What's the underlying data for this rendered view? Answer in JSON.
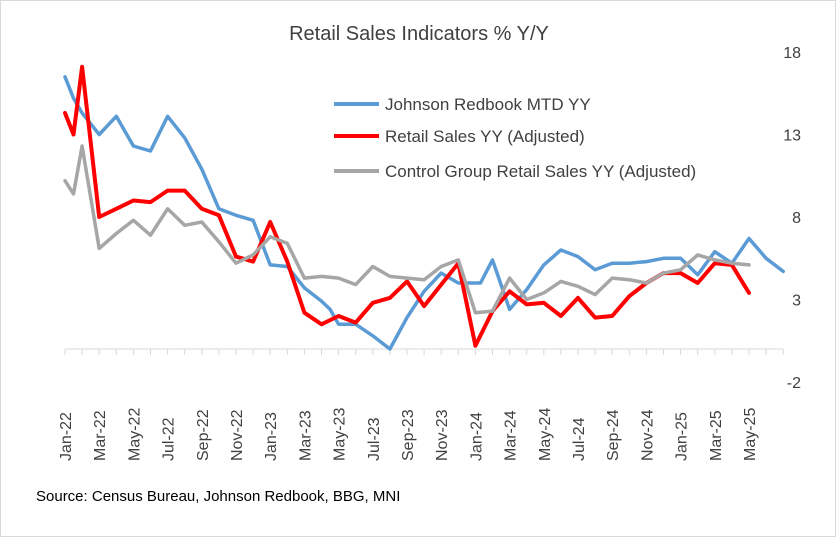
{
  "chart_data": {
    "type": "line",
    "title": "Retail Sales Indicators % Y/Y",
    "source": "Source: Census Bureau, Johnson Redbook, BBG, MNI",
    "y_axis": {
      "position": "right",
      "ylim": [
        -2,
        18
      ],
      "ticks": [
        "-2",
        "3",
        "8",
        "13",
        "18"
      ],
      "tick_values": [
        -2,
        3,
        8,
        13,
        18
      ]
    },
    "x_axis": {
      "baseline": 0,
      "tick_labels": [
        "Jan-22",
        "Mar-22",
        "May-22",
        "Jul-22",
        "Sep-22",
        "Nov-22",
        "Jan-23",
        "Mar-23",
        "May-23",
        "Jul-23",
        "Sep-23",
        "Nov-23",
        "Jan-24",
        "Mar-24",
        "May-24",
        "Jul-24",
        "Sep-24",
        "Nov-24",
        "Jan-25",
        "Mar-25",
        "May-25"
      ]
    },
    "grid": false,
    "legend": {
      "placement": "top-right"
    },
    "series": [
      {
        "name": "Johnson Redbook MTD YY",
        "color": "#5b9bd5",
        "points": [
          [
            0,
            16.5
          ],
          [
            0.5,
            15.2
          ],
          [
            1,
            14.3
          ],
          [
            2,
            13.0
          ],
          [
            3,
            14.1
          ],
          [
            4,
            12.3
          ],
          [
            5,
            12.0
          ],
          [
            6,
            14.1
          ],
          [
            7,
            12.8
          ],
          [
            8,
            10.9
          ],
          [
            9,
            8.5
          ],
          [
            10,
            8.1
          ],
          [
            11,
            7.8
          ],
          [
            12,
            5.1
          ],
          [
            13,
            5.0
          ],
          [
            14,
            3.7
          ],
          [
            15,
            2.9
          ],
          [
            15.5,
            2.4
          ],
          [
            16,
            1.5
          ],
          [
            17,
            1.5
          ],
          [
            18,
            0.8
          ],
          [
            19,
            0.0
          ],
          [
            20,
            1.9
          ],
          [
            21,
            3.5
          ],
          [
            22,
            4.6
          ],
          [
            23,
            4.0
          ],
          [
            24,
            4.0
          ],
          [
            24.3,
            4.0
          ],
          [
            25,
            5.4
          ],
          [
            26,
            2.4
          ],
          [
            27,
            3.6
          ],
          [
            28,
            5.1
          ],
          [
            29,
            6.0
          ],
          [
            30,
            5.6
          ],
          [
            31,
            4.8
          ],
          [
            32,
            5.2
          ],
          [
            33,
            5.2
          ],
          [
            34,
            5.3
          ],
          [
            35,
            5.5
          ],
          [
            36,
            5.5
          ],
          [
            37,
            4.5
          ],
          [
            38,
            5.9
          ],
          [
            39,
            5.2
          ],
          [
            40,
            6.7
          ],
          [
            41,
            5.5
          ],
          [
            42,
            4.7
          ]
        ]
      },
      {
        "name": "Retail Sales YY (Adjusted)",
        "color": "#ff0000",
        "points": [
          [
            0,
            14.3
          ],
          [
            0.5,
            13.0
          ],
          [
            1,
            17.1
          ],
          [
            2,
            8.0
          ],
          [
            3,
            8.5
          ],
          [
            4,
            9.0
          ],
          [
            5,
            8.9
          ],
          [
            6,
            9.6
          ],
          [
            7,
            9.6
          ],
          [
            8,
            8.5
          ],
          [
            9,
            8.1
          ],
          [
            10,
            5.6
          ],
          [
            11,
            5.3
          ],
          [
            12,
            7.7
          ],
          [
            13,
            5.3
          ],
          [
            14,
            2.2
          ],
          [
            15,
            1.5
          ],
          [
            16,
            2.0
          ],
          [
            17,
            1.6
          ],
          [
            18,
            2.8
          ],
          [
            19,
            3.1
          ],
          [
            20,
            4.1
          ],
          [
            21,
            2.6
          ],
          [
            22,
            3.9
          ],
          [
            23,
            5.2
          ],
          [
            24,
            0.2
          ],
          [
            25,
            2.3
          ],
          [
            26,
            3.5
          ],
          [
            27,
            2.7
          ],
          [
            28,
            2.8
          ],
          [
            29,
            2.0
          ],
          [
            30,
            3.1
          ],
          [
            31,
            1.9
          ],
          [
            32,
            2.0
          ],
          [
            33,
            3.2
          ],
          [
            34,
            4.0
          ],
          [
            35,
            4.6
          ],
          [
            36,
            4.6
          ],
          [
            37,
            4.0
          ],
          [
            38,
            5.2
          ],
          [
            39,
            5.1
          ],
          [
            40,
            3.4
          ]
        ]
      },
      {
        "name": "Control Group Retail Sales YY (Adjusted)",
        "color": "#a6a6a6",
        "points": [
          [
            0,
            10.2
          ],
          [
            0.5,
            9.4
          ],
          [
            1,
            12.3
          ],
          [
            2,
            6.1
          ],
          [
            3,
            7.0
          ],
          [
            4,
            7.8
          ],
          [
            5,
            6.9
          ],
          [
            6,
            8.5
          ],
          [
            7,
            7.5
          ],
          [
            8,
            7.7
          ],
          [
            9,
            6.5
          ],
          [
            10,
            5.2
          ],
          [
            11,
            5.7
          ],
          [
            12,
            6.8
          ],
          [
            13,
            6.4
          ],
          [
            14,
            4.3
          ],
          [
            15,
            4.4
          ],
          [
            16,
            4.3
          ],
          [
            17,
            3.9
          ],
          [
            18,
            5.0
          ],
          [
            19,
            4.4
          ],
          [
            20,
            4.3
          ],
          [
            21,
            4.2
          ],
          [
            22,
            5.0
          ],
          [
            23,
            5.4
          ],
          [
            24,
            2.2
          ],
          [
            25,
            2.3
          ],
          [
            26,
            4.3
          ],
          [
            27,
            3.0
          ],
          [
            28,
            3.4
          ],
          [
            29,
            4.1
          ],
          [
            30,
            3.8
          ],
          [
            31,
            3.3
          ],
          [
            32,
            4.3
          ],
          [
            33,
            4.2
          ],
          [
            34,
            4.0
          ],
          [
            35,
            4.6
          ],
          [
            36,
            4.8
          ],
          [
            37,
            5.7
          ],
          [
            38,
            5.4
          ],
          [
            39,
            5.2
          ],
          [
            40,
            5.1
          ]
        ]
      }
    ]
  }
}
